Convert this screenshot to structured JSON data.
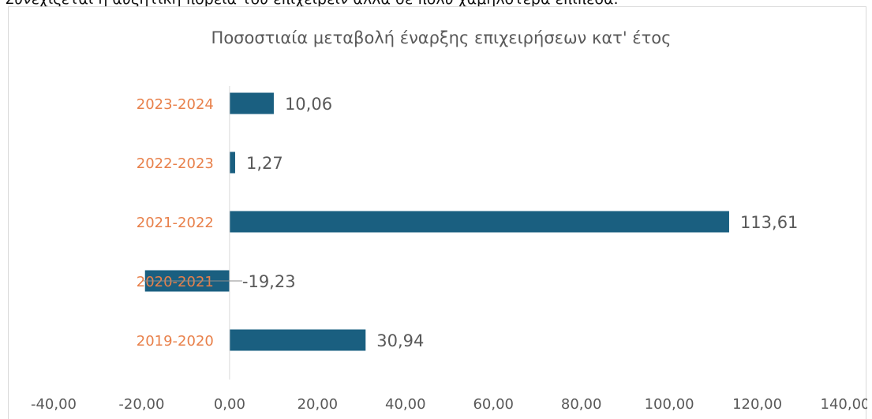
{
  "intro_text": "Συνεχίζεται η αυξητική πορεία του επιχειρείν αλλά σε πολύ χαμηλότερα επίπεδα.",
  "chart_data": {
    "type": "bar",
    "orientation": "horizontal",
    "title": "Ποσοστιαία μεταβολή έναρξης επιχειρήσεων κατ' έτος",
    "categories": [
      "2023-2024",
      "2022-2023",
      "2021-2022",
      "2020-2021",
      "2019-2020"
    ],
    "values": [
      10.06,
      1.27,
      113.61,
      -19.23,
      30.94
    ],
    "data_labels": [
      "10,06",
      "1,27",
      "113,61",
      "-19,23",
      "30,94"
    ],
    "xlim": [
      -40,
      140
    ],
    "x_ticks": [
      -40,
      -20,
      0,
      20,
      40,
      60,
      80,
      100,
      120,
      140
    ],
    "x_tick_labels": [
      "-40,00",
      "-20,00",
      "0,00",
      "20,00",
      "40,00",
      "60,00",
      "80,00",
      "100,00",
      "120,00",
      "140,00"
    ],
    "bar_color": "#1a5f80",
    "category_label_color": "#e8804a",
    "grid": false,
    "legend": "none"
  }
}
